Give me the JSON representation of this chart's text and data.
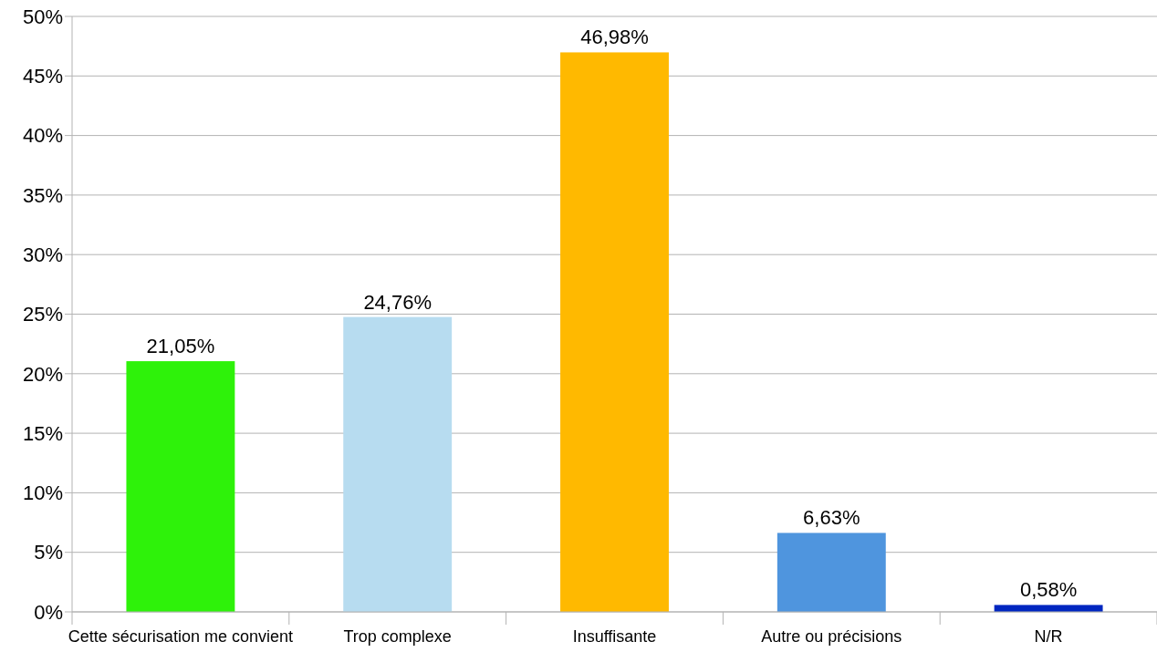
{
  "chart_data": {
    "type": "bar",
    "categories": [
      "Cette sécurisation me convient",
      "Trop complexe",
      "Insuffisante",
      "Autre ou précisions",
      "N/R"
    ],
    "values": [
      21.05,
      24.76,
      46.98,
      6.63,
      0.58
    ],
    "value_labels": [
      "21,05%",
      "24,76%",
      "46,98%",
      "6,63%",
      "0,58%"
    ],
    "colors": [
      "#2ef20a",
      "#b7dcf0",
      "#ffb900",
      "#4f95de",
      "#0026c0"
    ],
    "ylim": [
      0,
      50
    ],
    "yticks": [
      {
        "value": 0,
        "label": "0%"
      },
      {
        "value": 5,
        "label": "5%"
      },
      {
        "value": 10,
        "label": "10%"
      },
      {
        "value": 15,
        "label": "15%"
      },
      {
        "value": 20,
        "label": "20%"
      },
      {
        "value": 25,
        "label": "25%"
      },
      {
        "value": 30,
        "label": "30%"
      },
      {
        "value": 35,
        "label": "35%"
      },
      {
        "value": 40,
        "label": "40%"
      },
      {
        "value": 45,
        "label": "45%"
      },
      {
        "value": 50,
        "label": "50%"
      }
    ],
    "grid": "y"
  }
}
